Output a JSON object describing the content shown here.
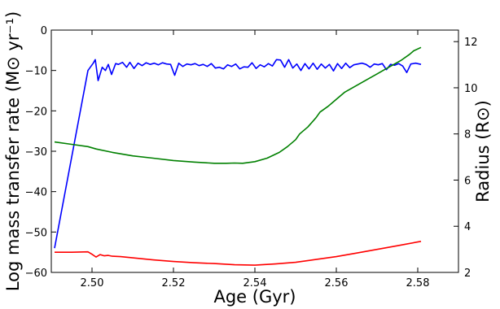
{
  "chart_data": {
    "type": "line",
    "xlabel": "Age (Gyr)",
    "ylabel_left": "Log mass transfer rate (M⊙ yr⁻¹)",
    "ylabel_right": "Radius (R⊙)",
    "xlim": [
      2.49,
      2.59
    ],
    "ylim_left": [
      -60,
      0
    ],
    "ylim_right": [
      2,
      12.5
    ],
    "x_ticks": [
      "2.50",
      "2.52",
      "2.54",
      "2.56",
      "2.58"
    ],
    "y_ticks_left": [
      "0",
      "−10",
      "−20",
      "−30",
      "−40",
      "−50",
      "−60"
    ],
    "y_ticks_right": [
      "2",
      "4",
      "6",
      "8",
      "10",
      "12"
    ],
    "grid": false,
    "series": [
      {
        "axis": "left",
        "color": "#0000ff",
        "x": [
          2.4908,
          2.499,
          2.5003,
          2.5008,
          2.5015,
          2.5025,
          2.5033,
          2.504,
          2.5048,
          2.5058,
          2.5065,
          2.5075,
          2.5085,
          2.5093,
          2.5103,
          2.5113,
          2.5123,
          2.5133,
          2.5143,
          2.5153,
          2.5163,
          2.5173,
          2.5183,
          2.5193,
          2.5203,
          2.5213,
          2.5223,
          2.5233,
          2.5243,
          2.5253,
          2.5263,
          2.5273,
          2.5283,
          2.5293,
          2.5303,
          2.5313,
          2.5323,
          2.5333,
          2.5343,
          2.5353,
          2.5363,
          2.5373,
          2.5383,
          2.5393,
          2.5403,
          2.5413,
          2.5423,
          2.5433,
          2.5443,
          2.5453,
          2.5463,
          2.5473,
          2.5483,
          2.5493,
          2.5503,
          2.5513,
          2.5523,
          2.5533,
          2.5543,
          2.5553,
          2.5563,
          2.5573,
          2.5583,
          2.5593,
          2.5603,
          2.5613,
          2.5623,
          2.5633,
          2.5643,
          2.5653,
          2.5663,
          2.5673,
          2.5683,
          2.5693,
          2.5703,
          2.5713,
          2.5723,
          2.5733,
          2.5743,
          2.5753,
          2.5763,
          2.5773,
          2.5783,
          2.5795,
          2.5808
        ],
        "values": [
          -54,
          -10,
          -8.2,
          -7.3,
          -12.5,
          -9.2,
          -10,
          -8.5,
          -11,
          -8.3,
          -8.5,
          -8,
          -9.2,
          -8,
          -9.5,
          -8.2,
          -8.8,
          -8.1,
          -8.5,
          -8.2,
          -8.6,
          -8.1,
          -8.4,
          -8.5,
          -11.2,
          -8.2,
          -9,
          -8.4,
          -8.6,
          -8.3,
          -8.8,
          -8.5,
          -9,
          -8.3,
          -9.4,
          -9.2,
          -9.6,
          -8.6,
          -9,
          -8.4,
          -9.6,
          -9.1,
          -9.2,
          -8.1,
          -9.5,
          -8.6,
          -9.1,
          -8.3,
          -8.9,
          -7.3,
          -7.4,
          -9.2,
          -7.3,
          -9.4,
          -8.4,
          -10,
          -8.3,
          -9.6,
          -8.2,
          -9.7,
          -8.4,
          -9.4,
          -8.5,
          -10.1,
          -8.3,
          -9.5,
          -8.2,
          -9.3,
          -8.6,
          -8.4,
          -8.2,
          -8.5,
          -9.2,
          -8.4,
          -8.6,
          -8.3,
          -9.8,
          -8.5,
          -8.7,
          -8.3,
          -8.9,
          -10.5,
          -8.4,
          -8.2,
          -8.5
        ]
      },
      {
        "axis": "right",
        "color": "#008000",
        "x": [
          2.4908,
          2.495,
          2.499,
          2.501,
          2.505,
          2.51,
          2.515,
          2.52,
          2.525,
          2.53,
          2.533,
          2.535,
          2.537,
          2.54,
          2.543,
          2.546,
          2.548,
          2.55,
          2.551,
          2.553,
          2.555,
          2.556,
          2.558,
          2.56,
          2.562,
          2.565,
          2.568,
          2.57,
          2.572,
          2.574,
          2.576,
          2.578,
          2.579,
          2.5808
        ],
        "values": [
          7.65,
          7.55,
          7.45,
          7.35,
          7.2,
          7.05,
          6.95,
          6.85,
          6.78,
          6.73,
          6.73,
          6.74,
          6.73,
          6.8,
          6.95,
          7.2,
          7.45,
          7.75,
          8.0,
          8.3,
          8.7,
          8.95,
          9.2,
          9.5,
          9.8,
          10.1,
          10.4,
          10.6,
          10.8,
          11.0,
          11.2,
          11.45,
          11.6,
          11.75
        ]
      },
      {
        "axis": "left",
        "color": "#ff0000",
        "x": [
          2.4908,
          2.495,
          2.499,
          2.5,
          2.501,
          2.502,
          2.503,
          2.504,
          2.505,
          2.507,
          2.51,
          2.515,
          2.52,
          2.525,
          2.53,
          2.535,
          2.54,
          2.545,
          2.55,
          2.555,
          2.56,
          2.565,
          2.57,
          2.575,
          2.5808
        ],
        "values": [
          -55,
          -55,
          -54.9,
          -55.5,
          -56.2,
          -55.6,
          -55.9,
          -55.8,
          -56,
          -56.1,
          -56.4,
          -56.9,
          -57.3,
          -57.6,
          -57.8,
          -58.1,
          -58.2,
          -57.9,
          -57.5,
          -56.8,
          -56.1,
          -55.2,
          -54.3,
          -53.4,
          -52.3
        ]
      }
    ]
  }
}
